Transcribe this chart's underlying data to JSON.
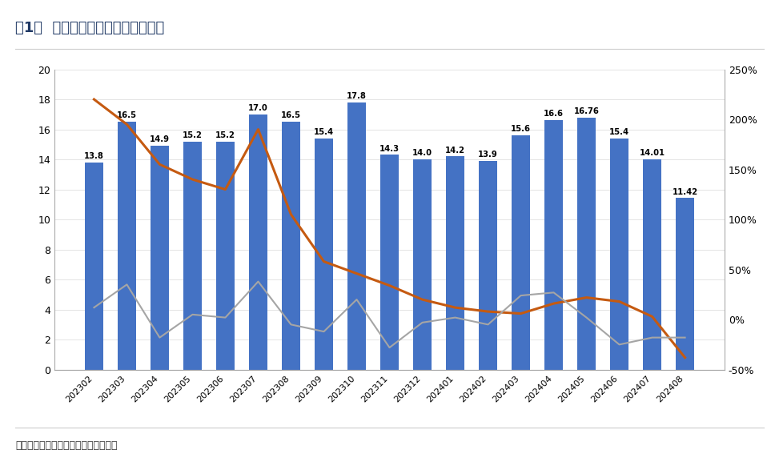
{
  "title": "图1:  美国组件进口金额（亿美元）",
  "source": "数据来源：美国海关，东吴证券研究所",
  "categories": [
    "202302",
    "202303",
    "202304",
    "202305",
    "202306",
    "202307",
    "202308",
    "202309",
    "202310",
    "202311",
    "202312",
    "202401",
    "202402",
    "202403",
    "202404",
    "202405",
    "202406",
    "202407",
    "202408"
  ],
  "bar_values": [
    13.8,
    16.5,
    14.9,
    15.2,
    15.2,
    17.0,
    16.5,
    15.4,
    17.8,
    14.3,
    14.0,
    14.2,
    13.9,
    15.6,
    16.6,
    16.76,
    15.4,
    14.01,
    11.42
  ],
  "yoy_values": [
    220,
    195,
    155,
    140,
    130,
    190,
    105,
    58,
    46,
    34,
    20,
    12,
    8,
    6,
    16,
    22,
    18,
    3,
    -38
  ],
  "mom_values": [
    12,
    35,
    -18,
    5,
    2,
    38,
    -5,
    -12,
    20,
    -28,
    -3,
    2,
    -5,
    24,
    27,
    2,
    -25,
    -18,
    -18
  ],
  "bar_color": "#4472C4",
  "yoy_color": "#C55A11",
  "mom_color": "#A5A5A5",
  "ylim_left": [
    0,
    20
  ],
  "ylim_right": [
    -50,
    250
  ],
  "yticks_left": [
    0,
    2,
    4,
    6,
    8,
    10,
    12,
    14,
    16,
    18,
    20
  ],
  "yticks_right": [
    -50,
    0,
    50,
    100,
    150,
    200,
    250
  ],
  "background_color": "#FFFFFF",
  "title_text": "图1：  美国组件进口金额（亿美元）",
  "source_text": "数据来源：美国海关，东吴证券研究所"
}
